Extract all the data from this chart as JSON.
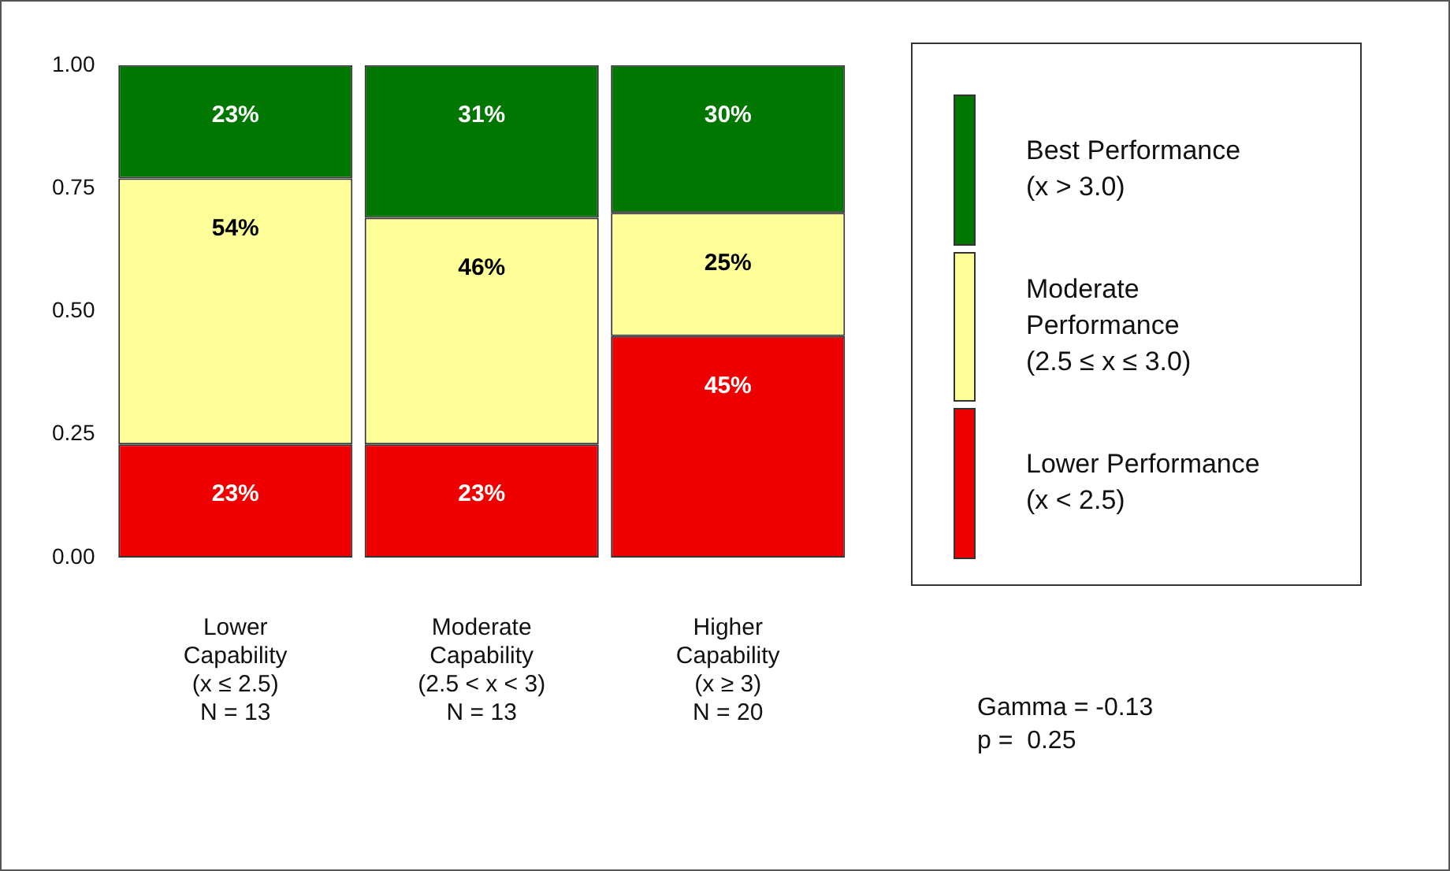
{
  "chart_data": {
    "type": "bar",
    "stacked": true,
    "categories": [
      "Lower\nCapability\n(x ≤ 2.5)\nN = 13",
      "Moderate\nCapability\n(2.5 < x < 3)\nN = 13",
      "Higher\nCapability\n(x ≥ 3)\nN = 20"
    ],
    "series": [
      {
        "name": "Lower Performance\n(x < 2.5)",
        "color": "#ee0000",
        "values": [
          0.23,
          0.23,
          0.45
        ],
        "value_labels": [
          "23%",
          "23%",
          "45%"
        ]
      },
      {
        "name": "Moderate\nPerformance\n(2.5 ≤ x ≤ 3.0)",
        "color": "#ffff99",
        "values": [
          0.54,
          0.46,
          0.25
        ],
        "value_labels": [
          "54%",
          "46%",
          "25%"
        ]
      },
      {
        "name": "Best Performance\n(x > 3.0)",
        "color": "#007700",
        "values": [
          0.23,
          0.31,
          0.3
        ],
        "value_labels": [
          "23%",
          "31%",
          "30%"
        ]
      }
    ],
    "ylim": [
      0,
      1
    ],
    "yticks": [
      {
        "value": 0,
        "label": "0.00"
      },
      {
        "value": 0.25,
        "label": "0.25"
      },
      {
        "value": 0.5,
        "label": "0.50"
      },
      {
        "value": 0.75,
        "label": "0.75"
      },
      {
        "value": 1,
        "label": "1.00"
      }
    ],
    "grid": false,
    "legend": "right",
    "annotations": [
      "Gamma = -0.13",
      "p =  0.25"
    ]
  }
}
